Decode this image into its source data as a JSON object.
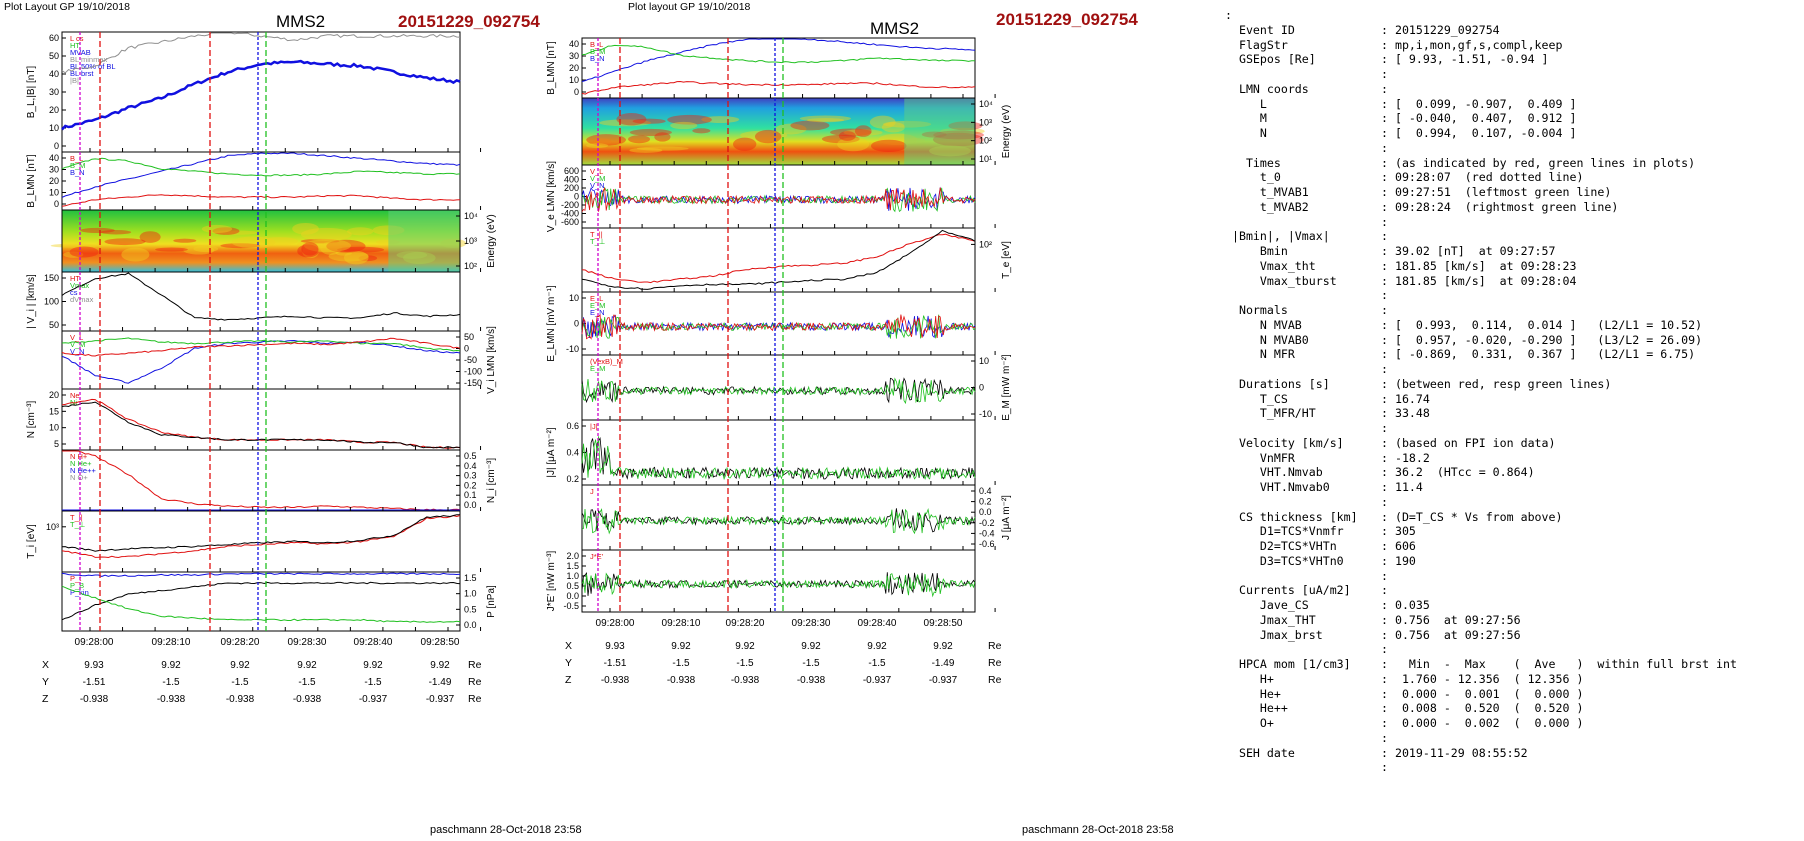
{
  "left_panel": {
    "header": "Plot Layout GP 19/10/2018",
    "spacecraft": "MMS2",
    "event": "20151229_092754",
    "footer": "paschmann 28-Oct-2018 23:58"
  },
  "right_panel": {
    "header": "Plot layout GP 19/10/2018",
    "spacecraft": "MMS2",
    "event": "20151229_092754",
    "footer": "paschmann 28-Oct-2018 23:58"
  },
  "colors": {
    "title_red": "#a01010",
    "series_blue": "#1010e0",
    "series_green": "#20c020",
    "series_red": "#e01010",
    "series_black": "#000000",
    "grey": "#909090",
    "magenta": "#d000d0"
  },
  "chart_data": [
    {
      "type": "line",
      "panel": "left",
      "ylabel": "B_L,|B| [nT]",
      "ylim": [
        0,
        60
      ],
      "yticks": [
        "60",
        "50",
        "40",
        "30",
        "20",
        "10",
        "0"
      ],
      "legend": [
        "L cs",
        "HT",
        "MVAB",
        "BL minmax",
        "BL 50% of BL",
        "BL brst",
        "|B|"
      ],
      "x": [
        0,
        5,
        10,
        15,
        20,
        25,
        30,
        35,
        40,
        45,
        50,
        55,
        60
      ],
      "series": [
        {
          "name": "BL brst",
          "color": "blue",
          "values": [
            12,
            16,
            22,
            27,
            34,
            40,
            44,
            45,
            44,
            43,
            40,
            37,
            35
          ]
        },
        {
          "name": "|B|",
          "color": "grey",
          "values": [
            40,
            43,
            52,
            55,
            58,
            60,
            58,
            56,
            58,
            58,
            58,
            58,
            58
          ]
        }
      ]
    },
    {
      "type": "line",
      "panel": "left",
      "ylabel": "B_LMN [nT]",
      "ylim": [
        0,
        45
      ],
      "yticks": [
        "40",
        "30",
        "20",
        "10",
        "0"
      ],
      "legend": [
        "B_L",
        "B_M",
        "B_N"
      ],
      "x": [
        0,
        5,
        10,
        15,
        20,
        25,
        30,
        35,
        40,
        45,
        50,
        55,
        60
      ],
      "series": [
        {
          "name": "B_L",
          "color": "blue",
          "values": [
            10,
            18,
            24,
            30,
            36,
            42,
            44,
            44,
            42,
            40,
            38,
            36,
            35
          ]
        },
        {
          "name": "B_M",
          "color": "green",
          "values": [
            32,
            40,
            38,
            32,
            30,
            28,
            27,
            27,
            28,
            30,
            29,
            28,
            28
          ]
        },
        {
          "name": "B_N",
          "color": "red",
          "values": [
            3,
            8,
            10,
            12,
            11,
            10,
            10,
            10,
            11,
            11,
            9,
            8,
            8
          ]
        }
      ]
    },
    {
      "type": "heatmap",
      "panel": "left",
      "ylabel": "Energy (eV)",
      "yticks": [
        "10⁴",
        "10³",
        "10²"
      ]
    },
    {
      "type": "line",
      "panel": "left",
      "ylabel": "| V_i | [km/s]",
      "ylim": [
        0,
        180
      ],
      "yticks": [
        "150",
        "100",
        "50"
      ],
      "legend": [
        "HT",
        "Vmax",
        "cs",
        "dVmax"
      ],
      "x": [
        0,
        5,
        10,
        15,
        20,
        25,
        30,
        35,
        40,
        45,
        50,
        55,
        60
      ],
      "series": [
        {
          "name": "|Vi|",
          "color": "black",
          "values": [
            110,
            160,
            175,
            110,
            40,
            35,
            40,
            45,
            40,
            40,
            55,
            45,
            50
          ]
        }
      ]
    },
    {
      "type": "line",
      "panel": "left",
      "ylabel": "V_i LMN [km/s]",
      "ylim": [
        -175,
        60
      ],
      "yticks": [
        "50",
        "0",
        "-50",
        "-100",
        "-150"
      ],
      "legend": [
        "V_L",
        "V_M",
        "V_N"
      ],
      "x": [
        0,
        5,
        10,
        15,
        20,
        25,
        30,
        35,
        40,
        45,
        50,
        55,
        60
      ],
      "series": [
        {
          "name": "V_L",
          "color": "blue",
          "values": [
            -40,
            -120,
            -150,
            -90,
            -10,
            10,
            15,
            20,
            10,
            15,
            0,
            -20,
            -30
          ]
        },
        {
          "name": "V_M",
          "color": "green",
          "values": [
            10,
            20,
            30,
            15,
            10,
            15,
            20,
            15,
            20,
            10,
            10,
            -10,
            -20
          ]
        },
        {
          "name": "V_N",
          "color": "red",
          "values": [
            -30,
            -40,
            -30,
            -20,
            -5,
            0,
            5,
            10,
            5,
            15,
            30,
            10,
            -10
          ]
        }
      ]
    },
    {
      "type": "line",
      "panel": "left",
      "ylabel": "N [cm⁻³]",
      "ylim": [
        0,
        24
      ],
      "yticks": [
        "20",
        "15",
        "10",
        "5"
      ],
      "legend": [
        "Ne",
        "Ni"
      ],
      "x": [
        0,
        5,
        10,
        15,
        20,
        25,
        30,
        35,
        40,
        45,
        50,
        55,
        60
      ],
      "series": [
        {
          "name": "Ne",
          "color": "red",
          "values": [
            18,
            20,
            12,
            7,
            5,
            4,
            4,
            4,
            4,
            3,
            3,
            1,
            1
          ]
        },
        {
          "name": "Ni",
          "color": "black",
          "values": [
            17,
            19,
            11,
            6,
            5,
            4,
            4,
            4,
            4,
            3,
            3,
            1,
            1
          ]
        }
      ]
    },
    {
      "type": "line",
      "panel": "left",
      "ylabel": "N_i [cm⁻³]",
      "ylim": [
        0,
        0.5
      ],
      "yticks": [
        "0.5",
        "0.4",
        "0.3",
        "0.2",
        "0.1",
        "0.0"
      ],
      "legend": [
        "N H+",
        "N He+",
        "N He++",
        "N O+"
      ],
      "x": [
        0,
        5,
        10,
        15,
        20,
        25,
        30,
        35,
        40,
        45,
        50,
        55,
        60
      ],
      "series": [
        {
          "name": "N He++",
          "color": "red",
          "values": [
            0.52,
            0.45,
            0.3,
            0.1,
            0.06,
            0.04,
            0.03,
            0.03,
            0.04,
            0.03,
            0.02,
            0.01,
            0.01
          ]
        },
        {
          "name": "N O+",
          "color": "blue",
          "values": [
            0.0,
            0.0,
            0.0,
            0.0,
            0.0,
            0.0,
            0.0,
            0.0,
            0.0,
            0.0,
            0.0,
            0.0,
            0.0
          ]
        }
      ]
    },
    {
      "type": "line",
      "panel": "left",
      "ylabel": "T_i [eV]",
      "yticks": [
        "10³"
      ],
      "legend": [
        "T_||",
        "T_⊥"
      ],
      "x": [
        0,
        5,
        10,
        15,
        20,
        25,
        30,
        35,
        40,
        45,
        50,
        55,
        60
      ],
      "series": [
        {
          "name": "T_||",
          "color": "red",
          "values": [
            0.35,
            0.25,
            0.25,
            0.3,
            0.35,
            0.42,
            0.45,
            0.48,
            0.46,
            0.5,
            0.58,
            0.88,
            0.92
          ]
        },
        {
          "name": "T_⊥",
          "color": "black",
          "values": [
            0.42,
            0.35,
            0.38,
            0.4,
            0.42,
            0.45,
            0.48,
            0.5,
            0.48,
            0.52,
            0.6,
            0.9,
            0.93
          ]
        }
      ]
    },
    {
      "type": "line",
      "panel": "left",
      "ylabel": "P [nPa]",
      "ylim": [
        0,
        1.6
      ],
      "yticks": [
        "1.5",
        "1.0",
        "0.5",
        "0.0"
      ],
      "legend": [
        "P_t",
        "P_B",
        "P_kin"
      ],
      "x": [
        0,
        5,
        10,
        15,
        20,
        25,
        30,
        35,
        40,
        45,
        50,
        55,
        60
      ],
      "series": [
        {
          "name": "P_t",
          "color": "blue",
          "values": [
            1.55,
            1.5,
            1.5,
            1.52,
            1.52,
            1.55,
            1.55,
            1.55,
            1.55,
            1.55,
            1.55,
            1.55,
            1.55
          ]
        },
        {
          "name": "P_B",
          "color": "black",
          "values": [
            0.3,
            0.7,
            1.0,
            1.1,
            1.2,
            1.3,
            1.3,
            1.3,
            1.3,
            1.3,
            1.3,
            1.3,
            1.3
          ]
        },
        {
          "name": "P_kin",
          "color": "green",
          "values": [
            1.2,
            0.9,
            0.6,
            0.4,
            0.35,
            0.3,
            0.3,
            0.3,
            0.3,
            0.3,
            0.25,
            0.25,
            0.25
          ]
        }
      ]
    },
    {
      "type": "line",
      "panel": "right",
      "ylabel": "B_LMN [nT]",
      "ylim": [
        0,
        45
      ],
      "yticks": [
        "40",
        "30",
        "20",
        "10",
        "0"
      ],
      "legend": [
        "B_L",
        "B_M",
        "B_N"
      ],
      "x": [
        0,
        5,
        10,
        15,
        20,
        25,
        30,
        35,
        40,
        45,
        50,
        55,
        60
      ],
      "series": [
        {
          "name": "B_L",
          "color": "blue",
          "values": [
            12,
            20,
            28,
            34,
            40,
            44,
            45,
            44,
            42,
            40,
            38,
            37,
            36
          ]
        },
        {
          "name": "B_M",
          "color": "green",
          "values": [
            32,
            40,
            38,
            32,
            30,
            28,
            27,
            27,
            28,
            30,
            29,
            28,
            28
          ]
        },
        {
          "name": "B_N",
          "color": "red",
          "values": [
            3,
            8,
            10,
            12,
            11,
            10,
            10,
            10,
            11,
            11,
            9,
            8,
            8
          ]
        }
      ]
    },
    {
      "type": "heatmap",
      "panel": "right",
      "ylabel": "Energy (eV)",
      "yticks": [
        "10⁴",
        "10³",
        "10²",
        "10¹"
      ]
    },
    {
      "type": "line",
      "panel": "right",
      "ylabel": "V_e LMN [km/s]",
      "ylim": [
        -650,
        650
      ],
      "yticks": [
        "600",
        "400",
        "200",
        "0",
        "-200",
        "-400",
        "-600"
      ],
      "legend": [
        "V_L",
        "V_M",
        "V_N"
      ]
    },
    {
      "type": "line",
      "panel": "right",
      "ylabel": "T_e [eV]",
      "yticks": [
        "10²"
      ],
      "legend": [
        "T_||",
        "T_⊥"
      ],
      "x": [
        0,
        5,
        10,
        15,
        20,
        25,
        30,
        35,
        40,
        45,
        50,
        55,
        60
      ],
      "series": [
        {
          "name": "T_||",
          "color": "red",
          "values": [
            0.35,
            0.2,
            0.15,
            0.2,
            0.25,
            0.35,
            0.4,
            0.42,
            0.45,
            0.55,
            0.75,
            0.9,
            0.8
          ]
        },
        {
          "name": "T_⊥",
          "color": "black",
          "values": [
            0.2,
            0.08,
            0.05,
            0.1,
            0.12,
            0.12,
            0.15,
            0.18,
            0.2,
            0.3,
            0.6,
            0.95,
            0.8
          ]
        }
      ]
    },
    {
      "type": "line",
      "panel": "right",
      "ylabel": "E_LMN [mV m⁻¹]",
      "ylim": [
        -15,
        15
      ],
      "yticks": [
        "10",
        "0",
        "-10"
      ],
      "legend": [
        "E_L",
        "E_M",
        "E_N"
      ]
    },
    {
      "type": "line",
      "panel": "right",
      "ylabel": "E_M [mW m⁻²]",
      "ylim": [
        -15,
        15
      ],
      "yticks": [
        "10",
        "0",
        "-10"
      ],
      "legend": [
        "(VexB)_M",
        "E_M"
      ]
    },
    {
      "type": "line",
      "panel": "right",
      "ylabel": "|J| [μA m⁻²]",
      "ylim": [
        0,
        0.7
      ],
      "yticks": [
        "0.6",
        "0.4",
        "0.2"
      ],
      "legend": [
        "|J|"
      ]
    },
    {
      "type": "line",
      "panel": "right",
      "ylabel": "J [μA m⁻²]",
      "ylim": [
        -0.65,
        0.45
      ],
      "yticks": [
        "0.4",
        "0.2",
        "0.0",
        "-0.2",
        "-0.4",
        "-0.6"
      ],
      "legend": [
        "J"
      ]
    },
    {
      "type": "line",
      "panel": "right",
      "ylabel": "J*E' [nW m⁻³]",
      "ylim": [
        -0.75,
        2.1
      ],
      "yticks": [
        "2.0",
        "1.5",
        "1.0",
        "0.5",
        "0.0",
        "-0.5"
      ],
      "legend": [
        "J*E'"
      ]
    }
  ],
  "time_axis": {
    "labels": [
      "09:28:00",
      "09:28:10",
      "09:28:20",
      "09:28:30",
      "09:28:40",
      "09:28:50"
    ],
    "positions_rows": [
      {
        "name": "X",
        "values": [
          "9.93",
          "9.92",
          "9.92",
          "9.92",
          "9.92",
          "9.92"
        ],
        "unit": "Re"
      },
      {
        "name": "Y",
        "values": [
          "-1.51",
          "-1.5",
          "-1.5",
          "-1.5",
          "-1.5",
          "-1.49"
        ],
        "unit": "Re"
      },
      {
        "name": "Z",
        "values": [
          "-0.938",
          "-0.938",
          "-0.938",
          "-0.938",
          "-0.937",
          "-0.937"
        ],
        "unit": "Re"
      }
    ]
  },
  "info_lines": [
    {
      "k": ":",
      "v": ""
    },
    {
      "k": "  Event ID",
      "v": ": 20151229_092754"
    },
    {
      "k": "  FlagStr",
      "v": ": mp,i,mon,gf,s,compl,keep"
    },
    {
      "k": "  GSEpos [Re]",
      "v": ": [ 9.93, -1.51, -0.94 ]"
    },
    {
      "k": "",
      "v": ":"
    },
    {
      "k": "  LMN coords",
      "v": ":"
    },
    {
      "k": "     L",
      "v": ": [  0.099, -0.907,  0.409 ]"
    },
    {
      "k": "     M",
      "v": ": [ -0.040,  0.407,  0.912 ]"
    },
    {
      "k": "     N",
      "v": ": [  0.994,  0.107, -0.004 ]"
    },
    {
      "k": "",
      "v": ":"
    },
    {
      "k": "   Times",
      "v": ": (as indicated by red, green lines in plots)"
    },
    {
      "k": "     t_0",
      "v": ": 09:28:07  (red dotted line)"
    },
    {
      "k": "     t_MVAB1",
      "v": ": 09:27:51  (leftmost green line)"
    },
    {
      "k": "     t_MVAB2",
      "v": ": 09:28:24  (rightmost green line)"
    },
    {
      "k": "",
      "v": ":"
    },
    {
      "k": " |Bmin|, |Vmax|",
      "v": ":"
    },
    {
      "k": "     Bmin",
      "v": ": 39.02 [nT]  at 09:27:57"
    },
    {
      "k": "     Vmax_tht",
      "v": ": 181.85 [km/s]  at 09:28:23"
    },
    {
      "k": "     Vmax_tburst",
      "v": ": 181.85 [km/s]  at 09:28:04"
    },
    {
      "k": "",
      "v": ":"
    },
    {
      "k": "  Normals",
      "v": ":"
    },
    {
      "k": "     N MVAB",
      "v": ": [  0.993,  0.114,  0.014 ]   (L2/L1 = 10.52)"
    },
    {
      "k": "     N MVAB0",
      "v": ": [  0.957, -0.020, -0.290 ]   (L3/L2 = 26.09)"
    },
    {
      "k": "     N MFR",
      "v": ": [ -0.869,  0.331,  0.367 ]   (L2/L1 = 6.75)"
    },
    {
      "k": "",
      "v": ":"
    },
    {
      "k": "  Durations [s]",
      "v": ": (between red, resp green lines)"
    },
    {
      "k": "     T_CS",
      "v": ": 16.74"
    },
    {
      "k": "     T_MFR/HT",
      "v": ": 33.48"
    },
    {
      "k": "",
      "v": ":"
    },
    {
      "k": "  Velocity [km/s]",
      "v": ": (based on FPI ion data)"
    },
    {
      "k": "     VnMFR",
      "v": ": -18.2"
    },
    {
      "k": "     VHT.Nmvab",
      "v": ": 36.2  (HTcc = 0.864)"
    },
    {
      "k": "     VHT.Nmvab0",
      "v": ": 11.4"
    },
    {
      "k": "",
      "v": ":"
    },
    {
      "k": "  CS thickness [km]",
      "v": ": (D=T_CS * Vs from above)"
    },
    {
      "k": "     D1=TCS*Vnmfr",
      "v": ": 305"
    },
    {
      "k": "     D2=TCS*VHTn",
      "v": ": 606"
    },
    {
      "k": "     D3=TCS*VHTn0",
      "v": ": 190"
    },
    {
      "k": "",
      "v": ":"
    },
    {
      "k": "  Currents [uA/m2]",
      "v": ":"
    },
    {
      "k": "     Jave_CS",
      "v": ": 0.035"
    },
    {
      "k": "     Jmax_THT",
      "v": ": 0.756  at 09:27:56"
    },
    {
      "k": "     Jmax_brst",
      "v": ": 0.756  at 09:27:56"
    },
    {
      "k": "",
      "v": ":"
    },
    {
      "k": "  HPCA mom [1/cm3]",
      "v": ":   Min  -  Max    (  Ave   )  within full brst int"
    },
    {
      "k": "     H+",
      "v": ":  1.760 - 12.356  ( 12.356 )"
    },
    {
      "k": "     He+",
      "v": ":  0.000 -  0.001  (  0.000 )"
    },
    {
      "k": "     He++",
      "v": ":  0.008 -  0.520  (  0.520 )"
    },
    {
      "k": "     O+",
      "v": ":  0.000 -  0.002  (  0.000 )"
    },
    {
      "k": "",
      "v": ":"
    },
    {
      "k": "  SEH date",
      "v": ": 2019-11-29 08:55:52"
    },
    {
      "k": "",
      "v": ":"
    }
  ]
}
